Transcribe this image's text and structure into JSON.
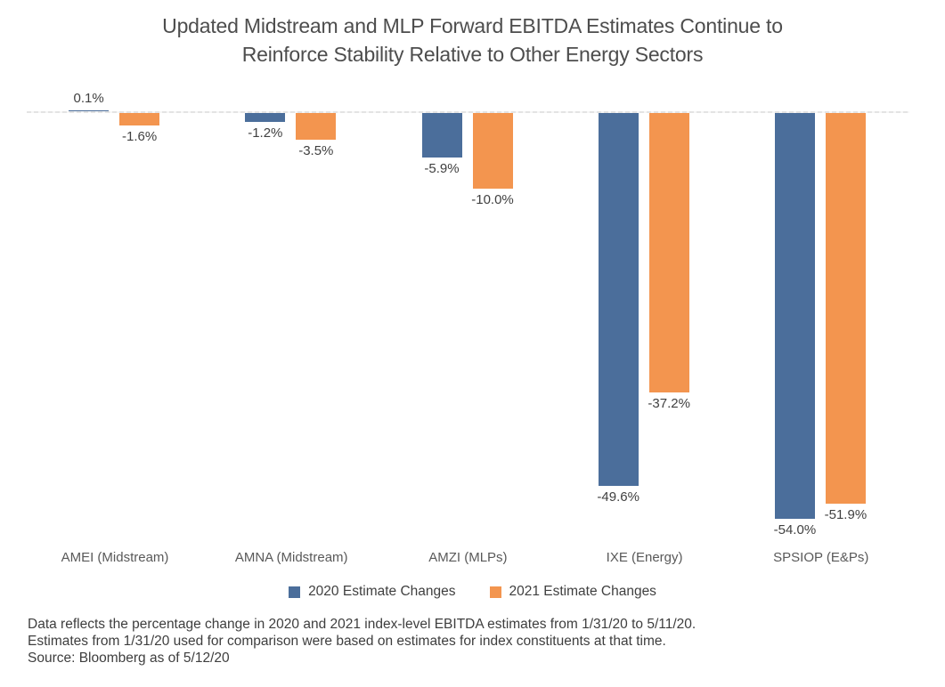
{
  "title": {
    "line1": "Updated Midstream and MLP Forward EBITDA Estimates Continue to",
    "line2": "Reinforce Stability Relative to Other Energy Sectors"
  },
  "chart_data": {
    "type": "bar",
    "categories": [
      "AMEI (Midstream)",
      "AMNA (Midstream)",
      "AMZI (MLPs)",
      "IXE (Energy)",
      "SPSIOP (E&Ps)"
    ],
    "category_keys": [
      "amei",
      "amna",
      "amzi",
      "ixe",
      "spsiop"
    ],
    "series": [
      {
        "name": "2020 Estimate Changes",
        "key": "2020",
        "color": "#4b6e9b",
        "values": [
          0.1,
          -1.2,
          -5.9,
          -49.6,
          -54.0
        ],
        "labels": [
          "0.1%",
          "-1.2%",
          "-5.9%",
          "-49.6%",
          "-54.0%"
        ]
      },
      {
        "name": "2021 Estimate Changes",
        "key": "2021",
        "color": "#f3954f",
        "values": [
          -1.6,
          -3.5,
          -10.0,
          -37.2,
          -51.9
        ],
        "labels": [
          "-1.6%",
          "-3.5%",
          "-10.0%",
          "-37.2%",
          "-51.9%"
        ]
      }
    ],
    "ylim": [
      -60,
      5
    ],
    "grid": false,
    "y_axis_shown": false,
    "zero_line_color": "#e3e3e3",
    "legend_position": "bottom"
  },
  "footnote": {
    "line1": "Data reflects the percentage change in 2020 and 2021 index-level EBITDA estimates from 1/31/20 to 5/11/20.",
    "line2": "Estimates from 1/31/20 used for comparison were based on estimates for index constituents at that time.",
    "line3": "Source: Bloomberg as of 5/12/20"
  }
}
